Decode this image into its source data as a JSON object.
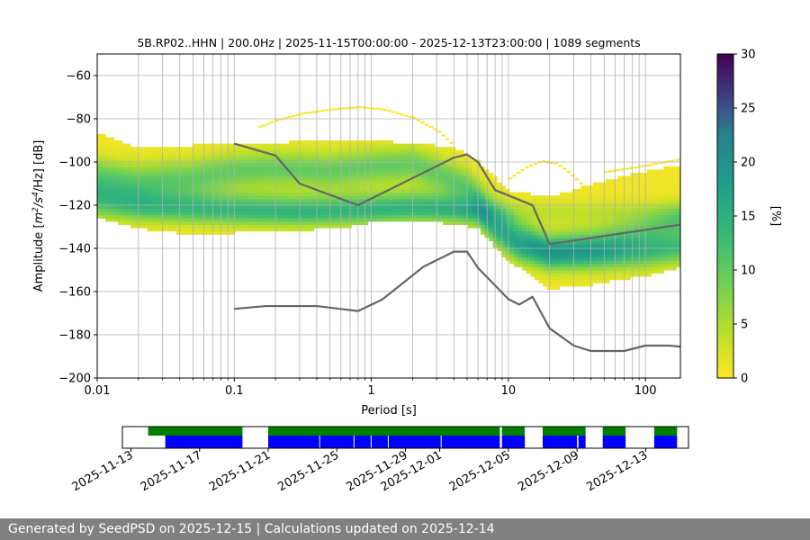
{
  "chart_data": {
    "type": "heatmap",
    "title": "5B.RP02..HHN | 200.0Hz | 2025-11-15T00:00:00 - 2025-12-13T23:00:00 | 1089 segments",
    "xlabel": "Period [s]",
    "ylabel_parts": {
      "prefix": "Amplitude [",
      "m": "m",
      "exp2": "2",
      "mid": "/s",
      "exp4": "4",
      "suffix": "/Hz] [dB]"
    },
    "x_scale": "log",
    "xlim": [
      0.01,
      180
    ],
    "ylim": [
      -200,
      -50
    ],
    "x_ticks": [
      {
        "value": 0.01,
        "label": "0.01"
      },
      {
        "value": 0.1,
        "label": "0.1"
      },
      {
        "value": 1,
        "label": "1"
      },
      {
        "value": 10,
        "label": "10"
      },
      {
        "value": 100,
        "label": "100"
      }
    ],
    "y_ticks": [
      {
        "value": -60,
        "label": "−60"
      },
      {
        "value": -80,
        "label": "−80"
      },
      {
        "value": -100,
        "label": "−100"
      },
      {
        "value": -120,
        "label": "−120"
      },
      {
        "value": -140,
        "label": "−140"
      },
      {
        "value": -160,
        "label": "−160"
      },
      {
        "value": -180,
        "label": "−180"
      },
      {
        "value": -200,
        "label": "−200"
      }
    ],
    "grid": true,
    "colorbar": {
      "label": "[%]",
      "range": [
        0,
        30
      ],
      "ticks": [
        {
          "value": 0,
          "label": "0"
        },
        {
          "value": 5,
          "label": "5"
        },
        {
          "value": 10,
          "label": "10"
        },
        {
          "value": 15,
          "label": "15"
        },
        {
          "value": 20,
          "label": "20"
        },
        {
          "value": 25,
          "label": "25"
        },
        {
          "value": 30,
          "label": "30"
        }
      ],
      "colormap": "viridis_r"
    },
    "density_bands": [
      {
        "name": "upper-mode",
        "mean": [
          [
            0.01,
            -106
          ],
          [
            0.02,
            -109
          ],
          [
            0.05,
            -107
          ],
          [
            0.1,
            -104
          ],
          [
            0.2,
            -103
          ],
          [
            0.5,
            -104
          ],
          [
            1,
            -102
          ],
          [
            2,
            -101
          ],
          [
            3,
            -105
          ],
          [
            5,
            -111
          ],
          [
            8,
            -124
          ],
          [
            12,
            -133
          ],
          [
            20,
            -140
          ],
          [
            40,
            -138
          ],
          [
            80,
            -134
          ],
          [
            180,
            -128
          ]
        ],
        "half_width": 8,
        "peak": 9
      },
      {
        "name": "lower-mode",
        "mean": [
          [
            0.01,
            -116
          ],
          [
            0.02,
            -119
          ],
          [
            0.05,
            -120
          ],
          [
            0.1,
            -121
          ],
          [
            0.3,
            -122
          ],
          [
            1,
            -121
          ],
          [
            2,
            -120
          ],
          [
            4,
            -121
          ],
          [
            6,
            -123
          ],
          [
            8,
            -132
          ],
          [
            12,
            -140
          ],
          [
            20,
            -143
          ],
          [
            50,
            -143
          ],
          [
            100,
            -142
          ],
          [
            180,
            -140
          ]
        ],
        "half_width": 7,
        "peak": 11
      },
      {
        "name": "low-ridge",
        "mean": [
          [
            0.01,
            -123
          ],
          [
            0.03,
            -124
          ],
          [
            0.1,
            -125
          ],
          [
            0.5,
            -125
          ],
          [
            1,
            -124
          ],
          [
            1.5,
            -123
          ]
        ],
        "half_width": 5,
        "peak": 3
      }
    ],
    "density_envelope": {
      "upper": [
        [
          0.01,
          -87
        ],
        [
          0.02,
          -94
        ],
        [
          0.05,
          -93
        ],
        [
          0.1,
          -92
        ],
        [
          0.2,
          -92
        ],
        [
          0.5,
          -90
        ],
        [
          1,
          -91
        ],
        [
          2,
          -92
        ],
        [
          4,
          -94
        ],
        [
          6,
          -100
        ],
        [
          10,
          -114
        ],
        [
          20,
          -117
        ],
        [
          40,
          -111
        ],
        [
          100,
          -105
        ],
        [
          180,
          -102
        ]
      ],
      "lower": [
        [
          0.01,
          -125
        ],
        [
          0.02,
          -130
        ],
        [
          0.05,
          -133
        ],
        [
          0.1,
          -132
        ],
        [
          0.3,
          -131
        ],
        [
          0.7,
          -129
        ],
        [
          1,
          -127
        ],
        [
          2,
          -126
        ],
        [
          4,
          -128
        ],
        [
          6,
          -130
        ],
        [
          10,
          -145
        ],
        [
          15,
          -152
        ],
        [
          20,
          -158
        ],
        [
          40,
          -156
        ],
        [
          100,
          -152
        ],
        [
          180,
          -148
        ]
      ]
    },
    "sparse_arcs": [
      [
        [
          0.15,
          -84
        ],
        [
          0.2,
          -81
        ],
        [
          0.3,
          -78
        ],
        [
          0.5,
          -76
        ],
        [
          0.8,
          -75
        ],
        [
          1.2,
          -76
        ],
        [
          2,
          -80
        ],
        [
          3,
          -86
        ],
        [
          4,
          -93
        ]
      ],
      [
        [
          10,
          -108
        ],
        [
          13,
          -103
        ],
        [
          17,
          -100
        ],
        [
          22,
          -101
        ],
        [
          28,
          -106
        ],
        [
          35,
          -112
        ]
      ],
      [
        [
          50,
          -105
        ],
        [
          80,
          -103
        ],
        [
          120,
          -101
        ],
        [
          180,
          -99
        ]
      ]
    ],
    "series": [
      {
        "name": "",
        "color": "#666666",
        "points": [
          [
            0.1,
            -91.5
          ],
          [
            0.2,
            -97
          ],
          [
            0.3,
            -110
          ],
          [
            0.8,
            -120
          ],
          [
            4,
            -98
          ],
          [
            5,
            -96.5
          ],
          [
            6,
            -100
          ],
          [
            8,
            -113
          ],
          [
            15,
            -120
          ],
          [
            20,
            -138
          ],
          [
            180,
            -129
          ]
        ]
      },
      {
        "name": "",
        "color": "#666666",
        "points": [
          [
            0.1,
            -168
          ],
          [
            0.17,
            -166.7
          ],
          [
            0.4,
            -166.7
          ],
          [
            0.8,
            -169
          ],
          [
            1.2,
            -163.7
          ],
          [
            2.4,
            -148.5
          ],
          [
            4,
            -141.5
          ],
          [
            5,
            -141.5
          ],
          [
            6,
            -149
          ],
          [
            10,
            -163.5
          ],
          [
            12,
            -166
          ],
          [
            15,
            -162.4
          ],
          [
            20,
            -177
          ],
          [
            30,
            -185
          ],
          [
            40,
            -187.5
          ],
          [
            70,
            -187.5
          ],
          [
            100,
            -185
          ],
          [
            150,
            -185
          ],
          [
            180,
            -185.5
          ]
        ]
      }
    ],
    "availability": {
      "date_ticks": [
        "2025-11-13",
        "2025-11-17",
        "2025-11-21",
        "2025-11-25",
        "2025-11-29",
        "2025-12-01",
        "2025-12-05",
        "2025-12-09",
        "2025-12-13"
      ],
      "green_color": "#008000",
      "blue_color": "#0000ff",
      "green_segments": [
        [
          "2025-11-14T00:00",
          "2025-11-19T12:00"
        ],
        [
          "2025-11-21T00:00",
          "2025-12-04T12:00"
        ],
        [
          "2025-12-04T15:00",
          "2025-12-05T23:00"
        ],
        [
          "2025-12-07T00:00",
          "2025-12-09T12:00"
        ],
        [
          "2025-12-10T12:00",
          "2025-12-11T20:00"
        ],
        [
          "2025-12-13T12:00",
          "2025-12-14T20:00"
        ]
      ],
      "blue_segments": [
        [
          "2025-11-15T00:00",
          "2025-11-19T12:00"
        ],
        [
          "2025-11-21T00:00",
          "2025-12-04T12:00"
        ],
        [
          "2025-12-04T15:00",
          "2025-12-05T23:00"
        ],
        [
          "2025-12-07T00:00",
          "2025-12-09T00:00"
        ],
        [
          "2025-12-09T02:00",
          "2025-12-09T12:00"
        ],
        [
          "2025-12-10T12:00",
          "2025-12-11T20:00"
        ],
        [
          "2025-12-13T12:00",
          "2025-12-14T20:00"
        ]
      ],
      "blue_gaps": [
        "2025-11-24T00:00",
        "2025-11-26T00:00",
        "2025-11-27T00:00",
        "2025-11-28T00:00",
        "2025-12-01T02:00"
      ]
    }
  },
  "footer": {
    "text": "Generated by SeedPSD on 2025-12-15 | Calculations updated on 2025-12-14"
  }
}
